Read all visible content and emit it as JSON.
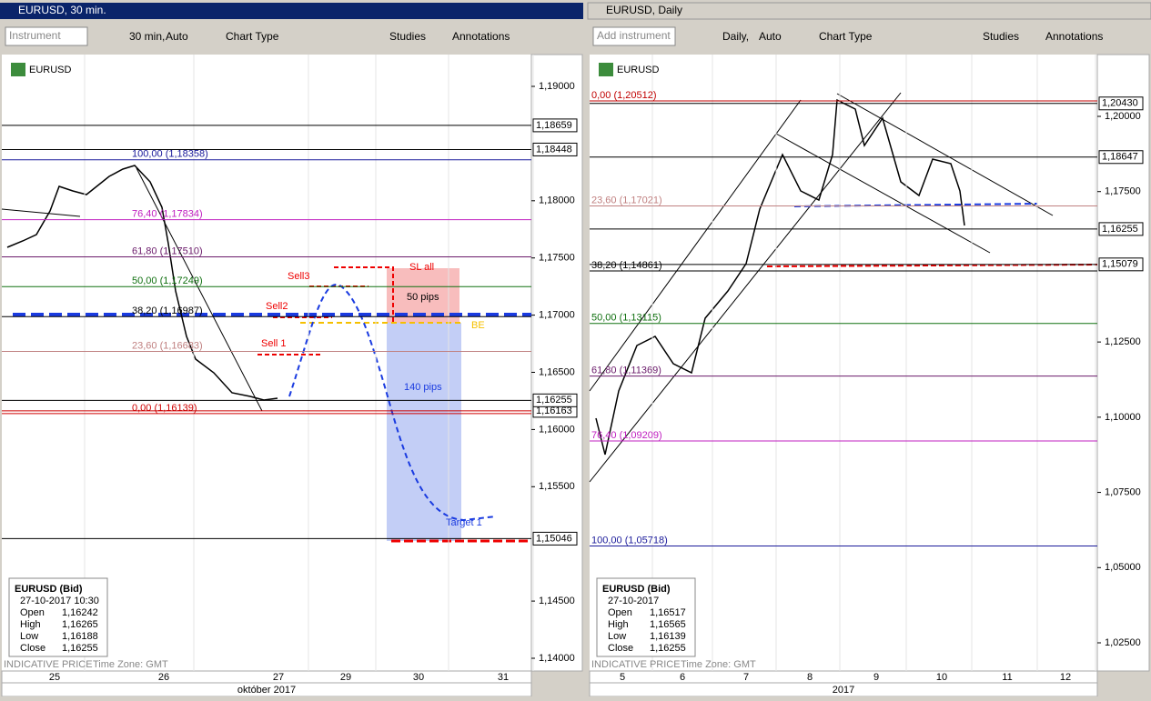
{
  "panels": [
    {
      "title": "EURUSD, 30 min.",
      "toolbar": {
        "instrument": "Instrument",
        "timeframe": "30 min,",
        "auto": "Auto",
        "chart_type": "Chart Type",
        "studies": "Studies",
        "annotations": "Annotations"
      },
      "symbol": "EURUSD",
      "price_ticks": [
        "1,19000",
        "1,18000",
        "1,17500",
        "1,17000",
        "1,16500",
        "1,16000",
        "1,15500",
        "1,14500",
        "1,14000"
      ],
      "price_boxes": [
        "1,18659",
        "1,18448",
        "1,16163",
        "1,16255",
        "1,15046"
      ],
      "fib": [
        "100,00 (1,18358)",
        "76,40 (1,17834)",
        "61,80 (1,17510)",
        "50,00 (1,17249)",
        "38,20 (1,16987)",
        "23,60 (1,16683)",
        "0,00 (1,16139)"
      ],
      "annotations": {
        "sell3": "Sell3",
        "sell2": "Sell2",
        "sell1": "Sell 1",
        "sl": "SL all",
        "pips50": "50 pips",
        "be": "BE",
        "pips140": "140 pips",
        "target": "Target 1"
      },
      "info": {
        "title": "EURUSD (Bid)",
        "date": "27-10-2017 10:30",
        "rows": [
          [
            "Open",
            "1,16242"
          ],
          [
            "High",
            "1,16265"
          ],
          [
            "Low",
            "1,16188"
          ],
          [
            "Close",
            "1,16255"
          ]
        ]
      },
      "footer": {
        "indicative": "INDICATIVE PRICE",
        "tz": "Time Zone: GMT"
      },
      "time_labels": [
        "25",
        "26",
        "27",
        "29",
        "30",
        "31"
      ],
      "time_caption": "október 2017"
    },
    {
      "title": "EURUSD, Daily",
      "toolbar": {
        "instrument": "Add instrument",
        "timeframe": "Daily,",
        "auto": "Auto",
        "chart_type": "Chart Type",
        "studies": "Studies",
        "annotations": "Annotations"
      },
      "symbol": "EURUSD",
      "price_ticks": [
        "1,20000",
        "1,17500",
        "1,12500",
        "1,10000",
        "1,07500",
        "1,05000",
        "1,02500"
      ],
      "price_boxes": [
        "1,20430",
        "1,18647",
        "1,16255",
        "1,15079"
      ],
      "fib": [
        "0,00 (1,20512)",
        "23,60 (1,17021)",
        "38,20 (1,14861)",
        "50,00 (1,13115)",
        "61,80 (1,11369)",
        "76,40 (1,09209)",
        "100,00 (1,05718)"
      ],
      "info": {
        "title": "EURUSD (Bid)",
        "date": "27-10-2017",
        "rows": [
          [
            "Open",
            "1,16517"
          ],
          [
            "High",
            "1,16565"
          ],
          [
            "Low",
            "1,16139"
          ],
          [
            "Close",
            "1,16255"
          ]
        ]
      },
      "footer": {
        "indicative": "INDICATIVE PRICE",
        "tz": "Time Zone: GMT"
      },
      "time_labels": [
        "5",
        "6",
        "7",
        "8",
        "9",
        "10",
        "11",
        "12"
      ],
      "time_caption": "2017"
    }
  ]
}
